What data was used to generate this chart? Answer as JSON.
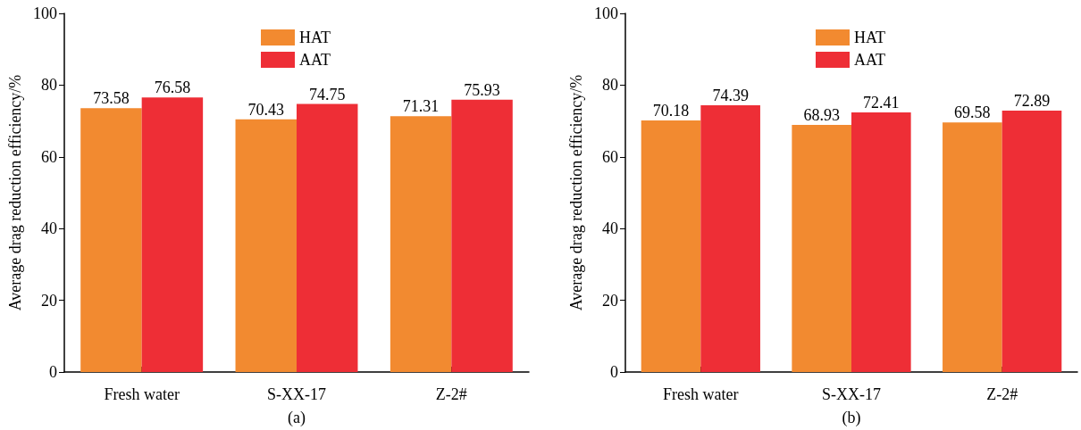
{
  "chart_data": [
    {
      "type": "bar",
      "xlabel": "(a)",
      "ylabel": "Average drag reduction efficiency/%",
      "categories": [
        "Fresh water",
        "S-XX-17",
        "Z-2#"
      ],
      "series": [
        {
          "name": "HAT",
          "color": "#f28a30",
          "values": [
            73.58,
            70.43,
            71.31
          ]
        },
        {
          "name": "AAT",
          "color": "#ee2e36",
          "values": [
            76.58,
            74.75,
            75.93
          ]
        }
      ],
      "ylim": [
        0,
        100
      ],
      "yticks": [
        0,
        20,
        40,
        60,
        80,
        100
      ],
      "data_labels": true,
      "legend": "top"
    },
    {
      "type": "bar",
      "xlabel": "(b)",
      "ylabel": "Average drag reduction efficiency/%",
      "categories": [
        "Fresh water",
        "S-XX-17",
        "Z-2#"
      ],
      "series": [
        {
          "name": "HAT",
          "color": "#f28a30",
          "values": [
            70.18,
            68.93,
            69.58
          ]
        },
        {
          "name": "AAT",
          "color": "#ee2e36",
          "values": [
            74.39,
            72.41,
            72.89
          ]
        }
      ],
      "ylim": [
        0,
        100
      ],
      "yticks": [
        0,
        20,
        40,
        60,
        80,
        100
      ],
      "data_labels": true,
      "legend": "top"
    }
  ]
}
